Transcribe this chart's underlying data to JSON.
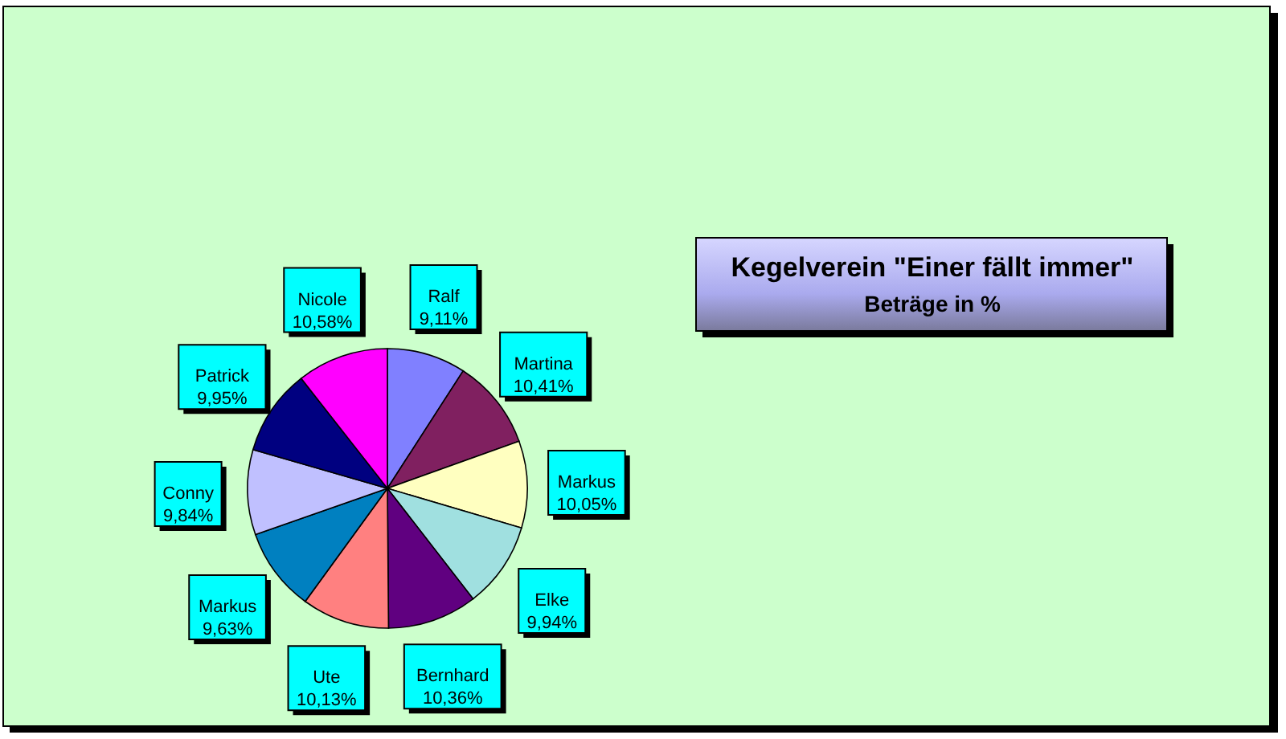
{
  "chart_data": {
    "type": "pie",
    "title": "Kegelverein \"Einer fällt immer\"",
    "subtitle": "Beträge in %",
    "categories": [
      "Ralf",
      "Martina",
      "Markus",
      "Elke",
      "Bernhard",
      "Ute",
      "Markus",
      "Conny",
      "Patrick",
      "Nicole"
    ],
    "values": [
      9.11,
      10.41,
      10.05,
      9.94,
      10.36,
      10.13,
      9.63,
      9.84,
      9.95,
      10.58
    ],
    "colors": [
      "#8080ff",
      "#802060",
      "#ffffc0",
      "#a0e0e0",
      "#600080",
      "#ff8080",
      "#0080c0",
      "#c0c0ff",
      "#000080",
      "#ff00ff"
    ],
    "value_labels": [
      "9,11%",
      "10,41%",
      "10,05%",
      "9,94%",
      "10,36%",
      "10,13%",
      "9,63%",
      "9,84%",
      "9,95%",
      "10,58%"
    ]
  }
}
